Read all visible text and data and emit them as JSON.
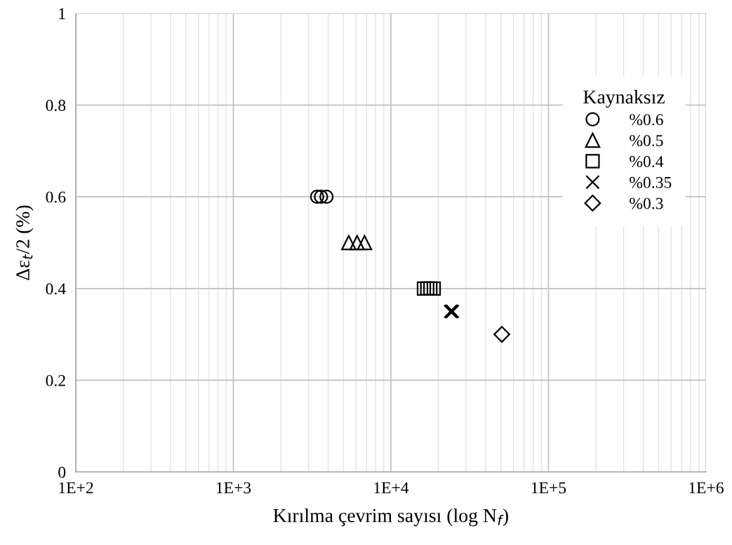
{
  "chart_data": {
    "type": "scatter",
    "xlabel": "Kırılma çevrim sayısı (log N$_{f}$)",
    "ylabel": "Δε$_{t}$/2 (%)",
    "legend_title": "Kaynaksız",
    "log": "x",
    "grid": true,
    "legend": "top right",
    "xlim": [
      100,
      1000000
    ],
    "xticks": [
      {
        "value": 100,
        "label": "1E+2"
      },
      {
        "value": 1000,
        "label": "1E+3"
      },
      {
        "value": 10000,
        "label": "1E+4"
      },
      {
        "value": 100000,
        "label": "1E+5"
      },
      {
        "value": 1000000,
        "label": "1E+6"
      }
    ],
    "ylim": [
      0,
      1
    ],
    "yticks": [
      0,
      0.2,
      0.4,
      0.6,
      0.8,
      1
    ],
    "series": [
      {
        "name": "%0.6",
        "marker": "circle",
        "color": "#000000",
        "x": [
          3400,
          3600,
          3900
        ],
        "values": [
          0.6,
          0.6,
          0.6
        ]
      },
      {
        "name": "%0.5",
        "marker": "triangle",
        "color": "#000000",
        "x": [
          5400,
          6100,
          6800
        ],
        "values": [
          0.5,
          0.5,
          0.5
        ]
      },
      {
        "name": "%0.4",
        "marker": "square",
        "color": "#000000",
        "x": [
          16200,
          17000,
          17800,
          18700
        ],
        "values": [
          0.4,
          0.4,
          0.4,
          0.4
        ]
      },
      {
        "name": "%0.35",
        "marker": "cross",
        "color": "#000000",
        "x": [
          24000,
          24500
        ],
        "values": [
          0.35,
          0.35
        ]
      },
      {
        "name": "%0.3",
        "marker": "diamond",
        "color": "#000000",
        "x": [
          50600
        ],
        "values": [
          0.3
        ]
      }
    ]
  }
}
